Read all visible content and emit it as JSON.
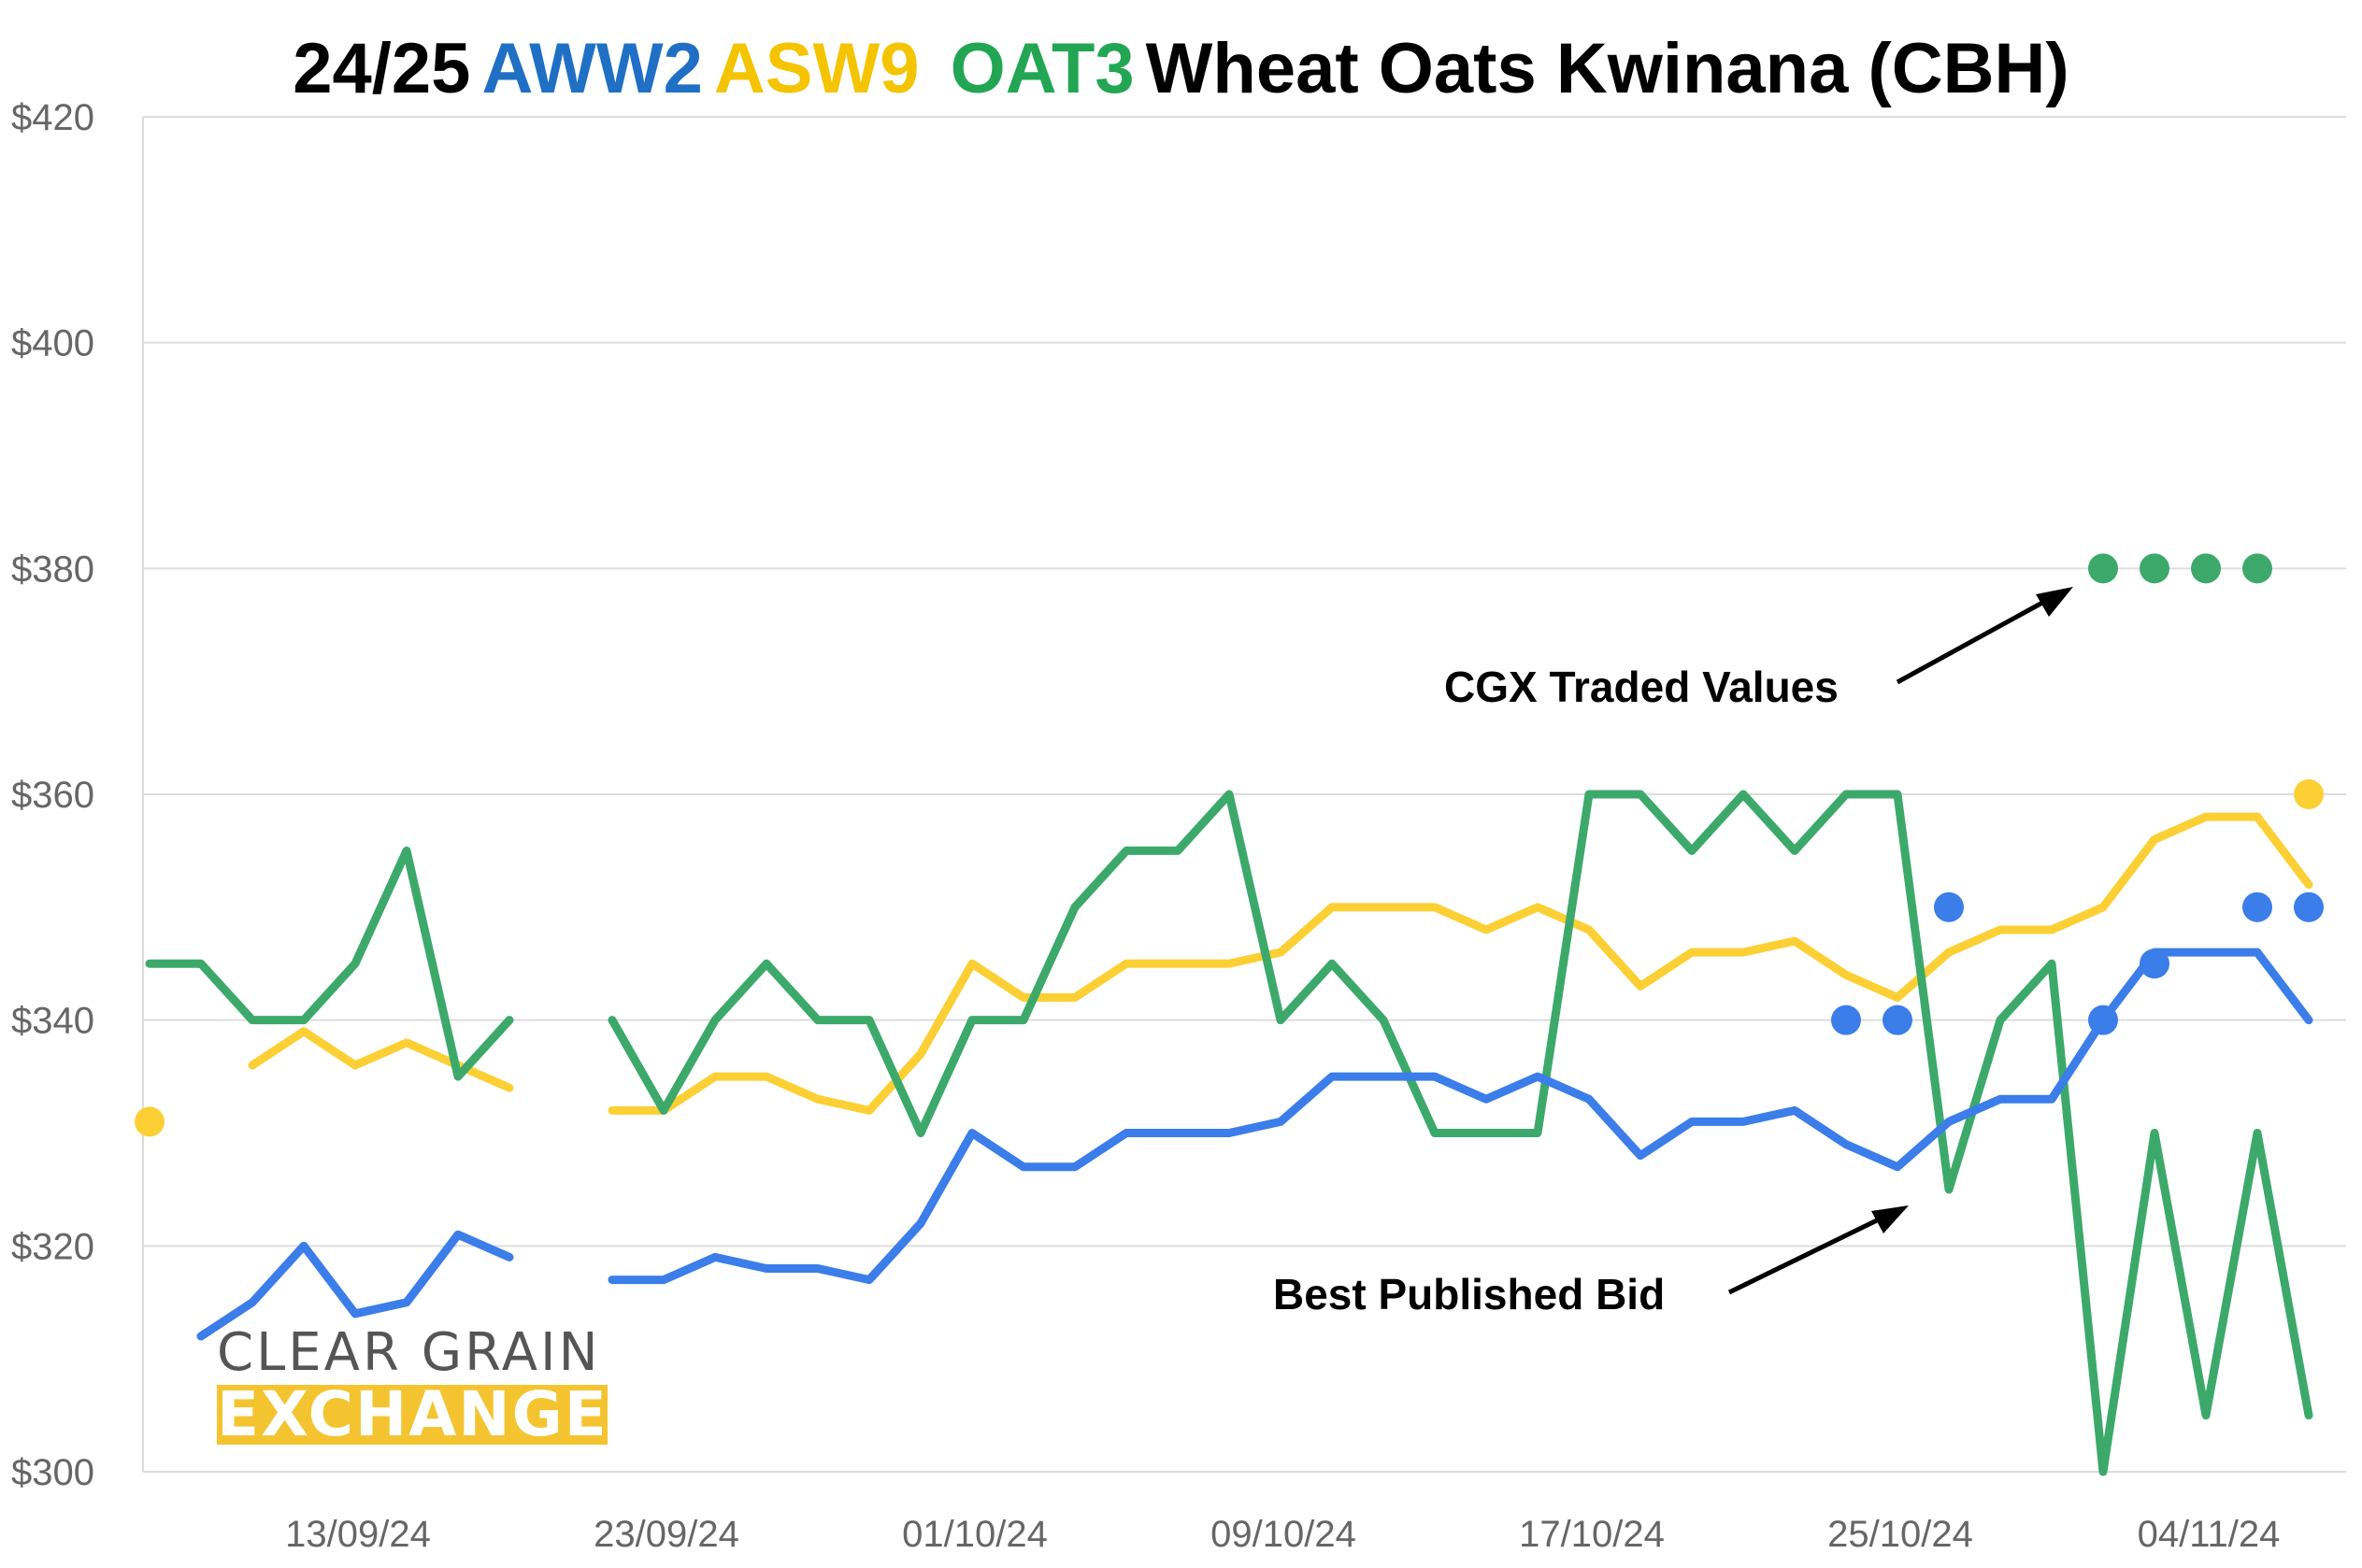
{
  "title": {
    "prefix": "24/25",
    "s1": "AWW2",
    "s2": "ASW9",
    "s3": "OAT3",
    "suffix": "Wheat Oats Kwinana (CBH)"
  },
  "colors": {
    "aww2": "#3b7de9",
    "asw9": "#fcd034",
    "oat3": "#3ca96b",
    "title_aww2": "#1f6fc5",
    "title_asw9": "#f5c400",
    "title_oat3": "#22a653",
    "grid": "#dddddd",
    "tick": "#666666"
  },
  "annotations": {
    "traded": "CGX Traded Values",
    "bid": "Best Published Bid"
  },
  "logo": {
    "line1": "CLEAR GRAIN",
    "line2": "EXCHANGE"
  },
  "chart_data": {
    "type": "line",
    "ylim": [
      300,
      420
    ],
    "yticks": [
      300,
      320,
      340,
      360,
      380,
      400,
      420
    ],
    "ytick_labels": [
      "$300",
      "$320",
      "$340",
      "$360",
      "$380",
      "$400",
      "$420"
    ],
    "xlim": [
      0,
      42
    ],
    "xticks": [
      2,
      8,
      14,
      20,
      26,
      32,
      38
    ],
    "xtick_labels": [
      "13/09/24",
      "23/09/24",
      "01/10/24",
      "09/10/24",
      "17/10/24",
      "25/10/24",
      "04/11/24"
    ],
    "grid": true,
    "legend": "none",
    "series": [
      {
        "name": "ASW9",
        "color_key": "asw9",
        "segments": [
          [
            [
              2,
              336
            ],
            [
              3,
              339
            ],
            [
              4,
              336
            ],
            [
              5,
              338
            ],
            [
              6,
              336
            ],
            [
              7,
              334
            ]
          ],
          [
            [
              9,
              332
            ],
            [
              10,
              332
            ],
            [
              11,
              335
            ],
            [
              12,
              335
            ],
            [
              13,
              333
            ],
            [
              14,
              332
            ],
            [
              15,
              337
            ],
            [
              16,
              345
            ],
            [
              17,
              342
            ],
            [
              18,
              342
            ],
            [
              19,
              345
            ],
            [
              20,
              345
            ],
            [
              21,
              345
            ],
            [
              22,
              346
            ],
            [
              23,
              350
            ],
            [
              24,
              350
            ],
            [
              25,
              350
            ],
            [
              26,
              348
            ],
            [
              27,
              350
            ],
            [
              28,
              348
            ],
            [
              29,
              343
            ],
            [
              30,
              346
            ],
            [
              31,
              346
            ],
            [
              32,
              347
            ],
            [
              33,
              344
            ],
            [
              34,
              342
            ],
            [
              35,
              346
            ],
            [
              36,
              348
            ],
            [
              37,
              348
            ],
            [
              38,
              350
            ],
            [
              39,
              356
            ],
            [
              40,
              358
            ],
            [
              41,
              358
            ],
            [
              42,
              352
            ]
          ]
        ],
        "markers": [
          [
            0,
            331
          ],
          [
            42,
            360
          ]
        ]
      },
      {
        "name": "OAT3",
        "color_key": "oat3",
        "segments": [
          [
            [
              0,
              345
            ],
            [
              1,
              345
            ],
            [
              2,
              340
            ],
            [
              3,
              340
            ],
            [
              4,
              345
            ],
            [
              5,
              355
            ],
            [
              6,
              335
            ],
            [
              7,
              340
            ]
          ],
          [
            [
              9,
              340
            ],
            [
              10,
              332
            ],
            [
              11,
              340
            ],
            [
              12,
              345
            ],
            [
              13,
              340
            ],
            [
              14,
              340
            ],
            [
              15,
              330
            ],
            [
              16,
              340
            ],
            [
              17,
              340
            ],
            [
              18,
              350
            ],
            [
              19,
              355
            ],
            [
              20,
              355
            ],
            [
              21,
              360
            ],
            [
              22,
              340
            ],
            [
              23,
              345
            ],
            [
              24,
              340
            ],
            [
              25,
              330
            ],
            [
              26,
              330
            ],
            [
              27,
              330
            ],
            [
              28,
              360
            ],
            [
              29,
              360
            ],
            [
              30,
              355
            ],
            [
              31,
              360
            ],
            [
              32,
              355
            ],
            [
              33,
              360
            ],
            [
              34,
              360
            ],
            [
              35,
              325
            ],
            [
              36,
              340
            ],
            [
              37,
              345
            ],
            [
              38,
              300
            ],
            [
              39,
              330
            ],
            [
              40,
              305
            ],
            [
              41,
              330
            ],
            [
              42,
              305
            ]
          ]
        ],
        "markers": [
          [
            38,
            380
          ],
          [
            39,
            380
          ],
          [
            40,
            380
          ],
          [
            41,
            380
          ]
        ]
      },
      {
        "name": "AWW2",
        "color_key": "aww2",
        "segments": [
          [
            [
              1,
              312
            ],
            [
              2,
              315
            ],
            [
              3,
              320
            ],
            [
              4,
              314
            ],
            [
              5,
              315
            ],
            [
              6,
              321
            ],
            [
              7,
              319
            ]
          ],
          [
            [
              9,
              317
            ],
            [
              10,
              317
            ],
            [
              11,
              319
            ],
            [
              12,
              318
            ],
            [
              13,
              318
            ],
            [
              14,
              317
            ],
            [
              15,
              322
            ],
            [
              16,
              330
            ],
            [
              17,
              327
            ],
            [
              18,
              327
            ],
            [
              19,
              330
            ],
            [
              20,
              330
            ],
            [
              21,
              330
            ],
            [
              22,
              331
            ],
            [
              23,
              335
            ],
            [
              24,
              335
            ],
            [
              25,
              335
            ],
            [
              26,
              333
            ],
            [
              27,
              335
            ],
            [
              28,
              333
            ],
            [
              29,
              328
            ],
            [
              30,
              331
            ],
            [
              31,
              331
            ],
            [
              32,
              332
            ],
            [
              33,
              329
            ],
            [
              34,
              327
            ],
            [
              35,
              331
            ],
            [
              36,
              333
            ],
            [
              37,
              333
            ],
            [
              38,
              340
            ],
            [
              39,
              346
            ],
            [
              40,
              346
            ],
            [
              41,
              346
            ],
            [
              42,
              340
            ]
          ]
        ],
        "markers": [
          [
            33,
            340
          ],
          [
            34,
            340
          ],
          [
            35,
            350
          ],
          [
            38,
            340
          ],
          [
            39,
            345
          ],
          [
            41,
            350
          ],
          [
            42,
            350
          ]
        ]
      }
    ]
  }
}
